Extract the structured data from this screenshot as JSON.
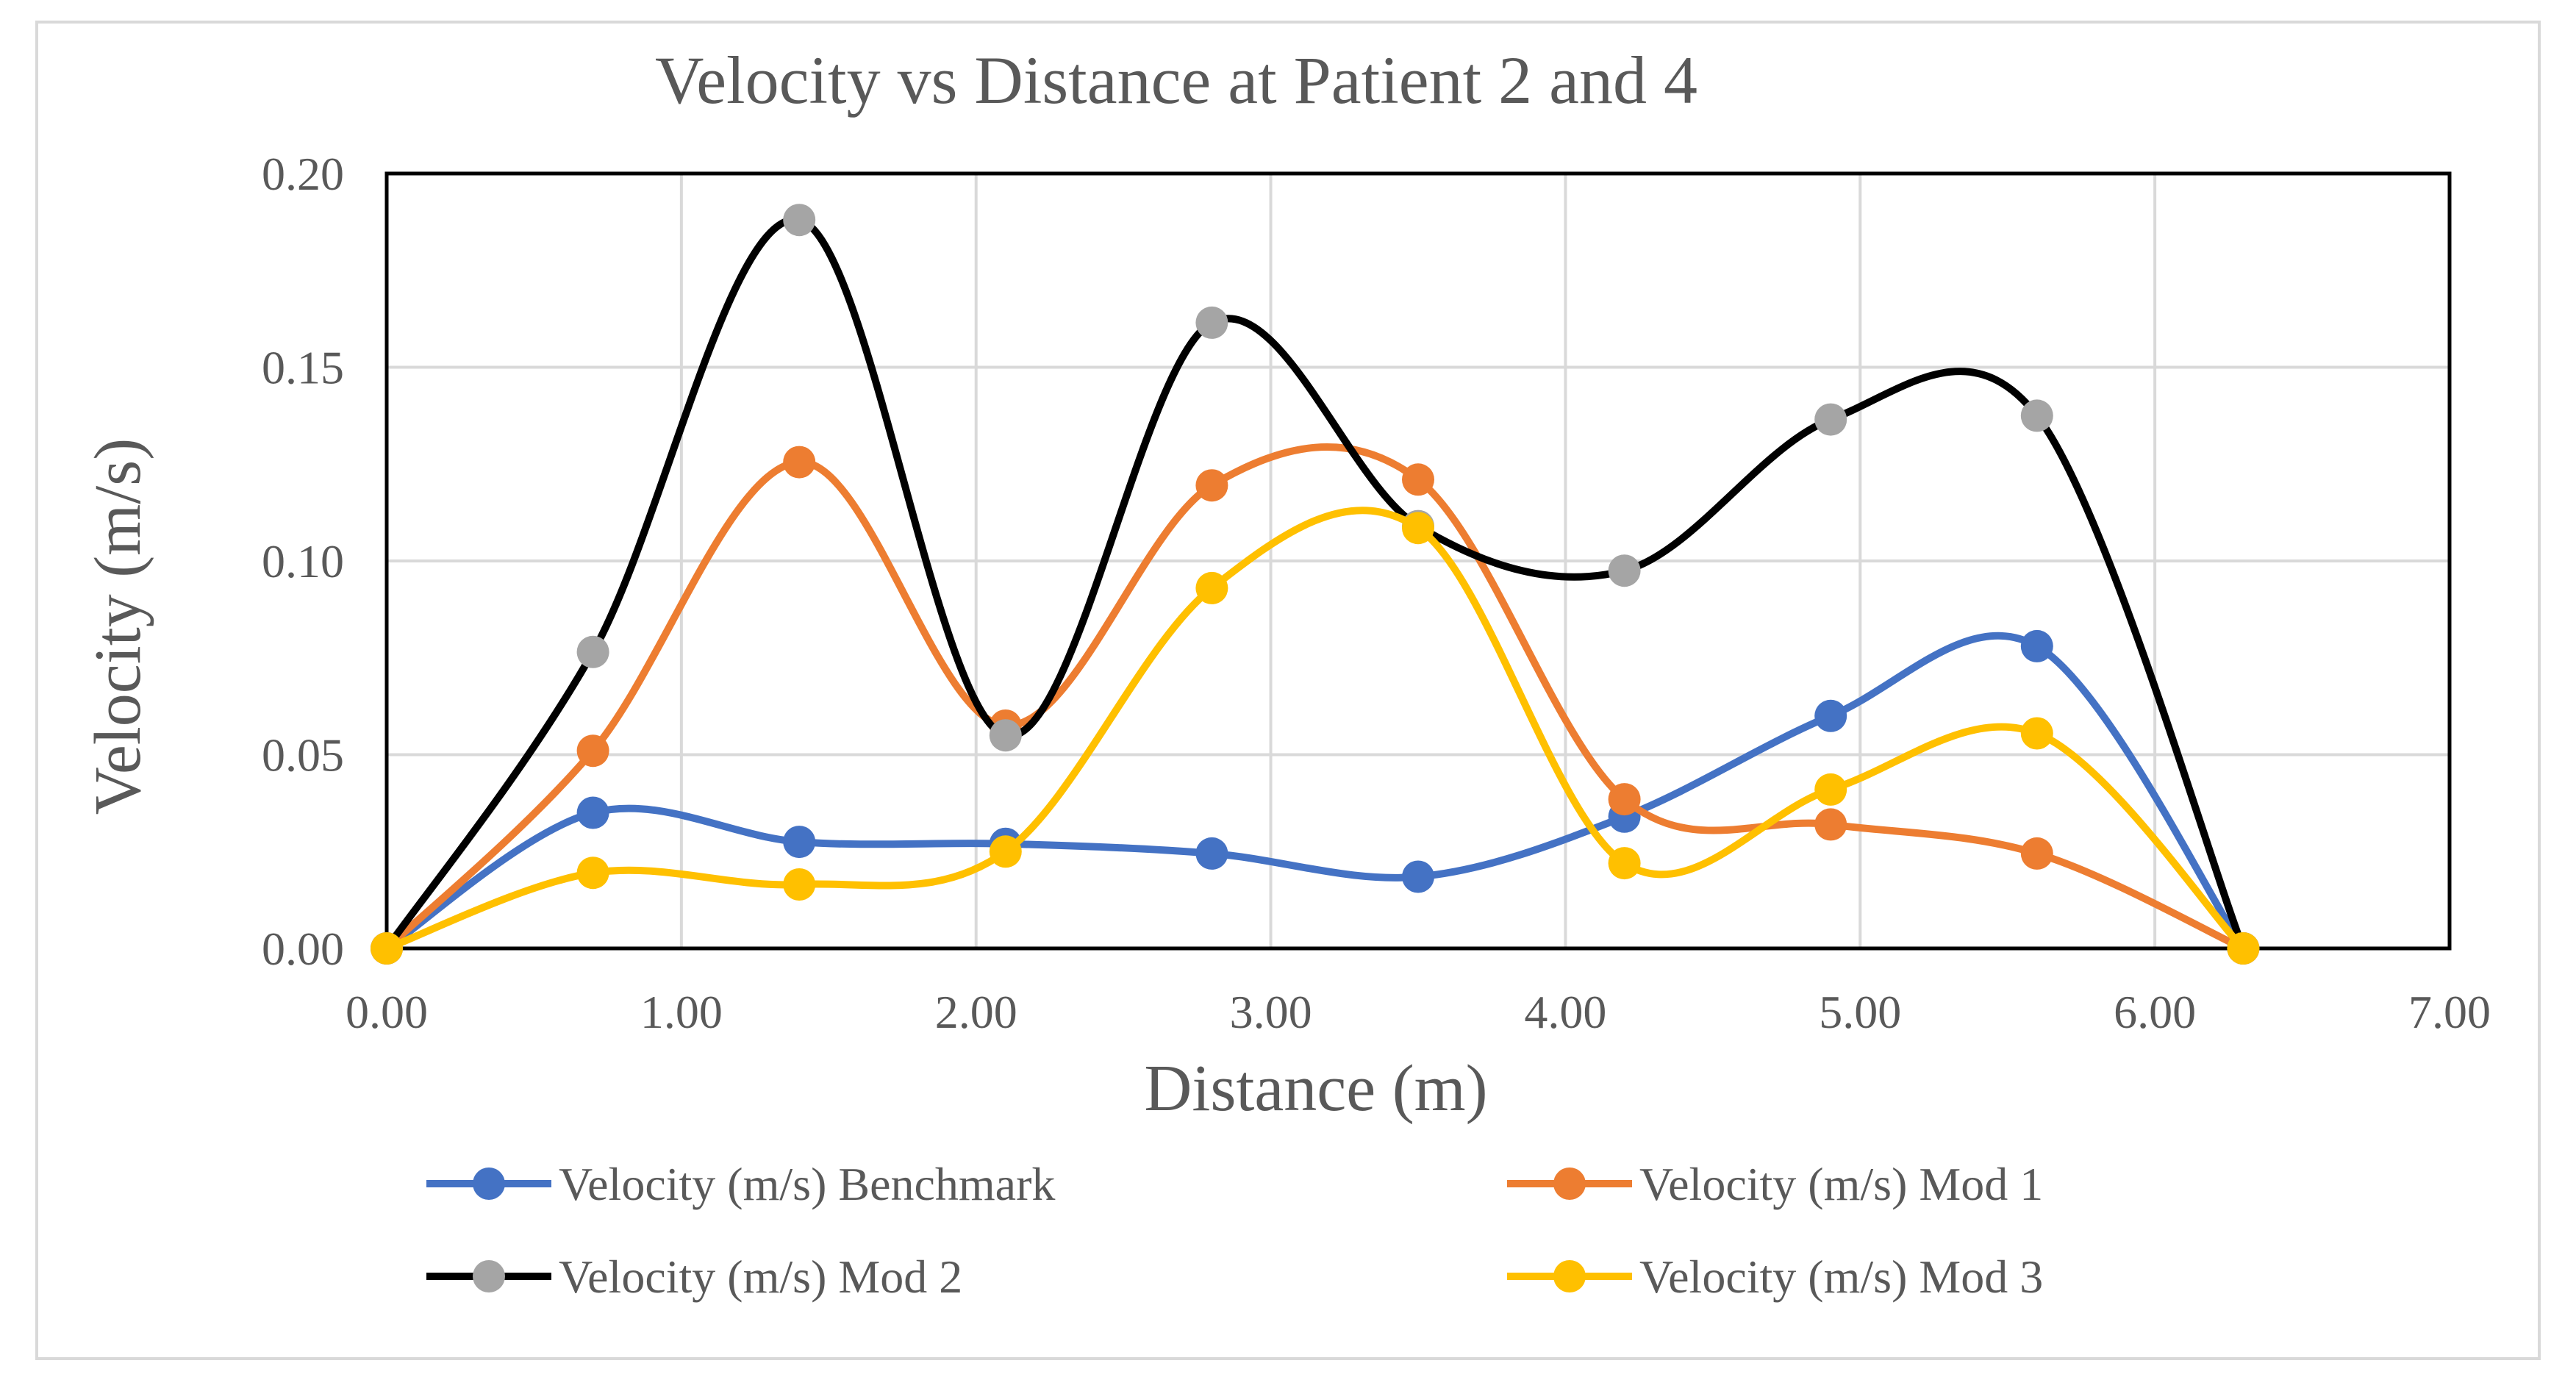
{
  "chart_data": {
    "type": "line",
    "title": "Velocity vs Distance at Patient 2 and 4",
    "xlabel": "Distance (m)",
    "ylabel": "Velocity (m/s)",
    "xlim": [
      0,
      7
    ],
    "ylim": [
      0,
      0.2
    ],
    "x_ticks": [
      "0.00",
      "1.00",
      "2.00",
      "3.00",
      "4.00",
      "5.00",
      "6.00",
      "7.00"
    ],
    "y_ticks": [
      "0.00",
      "0.05",
      "0.10",
      "0.15",
      "0.20"
    ],
    "x_tick_values": [
      0,
      1,
      2,
      3,
      4,
      5,
      6,
      7
    ],
    "y_tick_values": [
      0,
      0.05,
      0.1,
      0.15,
      0.2
    ],
    "grid": true,
    "smooth": true,
    "legend_position": "bottom",
    "x": [
      0,
      0.7,
      1.4,
      2.1,
      2.8,
      3.5,
      4.2,
      4.9,
      5.6,
      6.3
    ],
    "series": [
      {
        "name": "Velocity (m/s) Benchmark",
        "line_color": "#4472C4",
        "marker_color": "#4472C4",
        "values": [
          0.0,
          0.035,
          0.0275,
          0.027,
          0.0245,
          0.0185,
          0.034,
          0.06,
          0.078,
          0.0
        ]
      },
      {
        "name": "Velocity (m/s) Mod 1",
        "line_color": "#ED7D31",
        "marker_color": "#ED7D31",
        "values": [
          0.0,
          0.051,
          0.1255,
          0.0575,
          0.1195,
          0.121,
          0.0385,
          0.032,
          0.0245,
          0.0
        ]
      },
      {
        "name": "Velocity (m/s) Mod 2",
        "line_color": "#000000",
        "marker_color": "#A5A5A5",
        "values": [
          0.0,
          0.0765,
          0.188,
          0.055,
          0.1615,
          0.109,
          0.0975,
          0.1365,
          0.1375,
          0.0
        ]
      },
      {
        "name": "Velocity (m/s) Mod 3",
        "line_color": "#FFC000",
        "marker_color": "#FFC000",
        "values": [
          0.0,
          0.0195,
          0.0165,
          0.025,
          0.093,
          0.1085,
          0.022,
          0.041,
          0.0555,
          0.0
        ]
      }
    ]
  }
}
